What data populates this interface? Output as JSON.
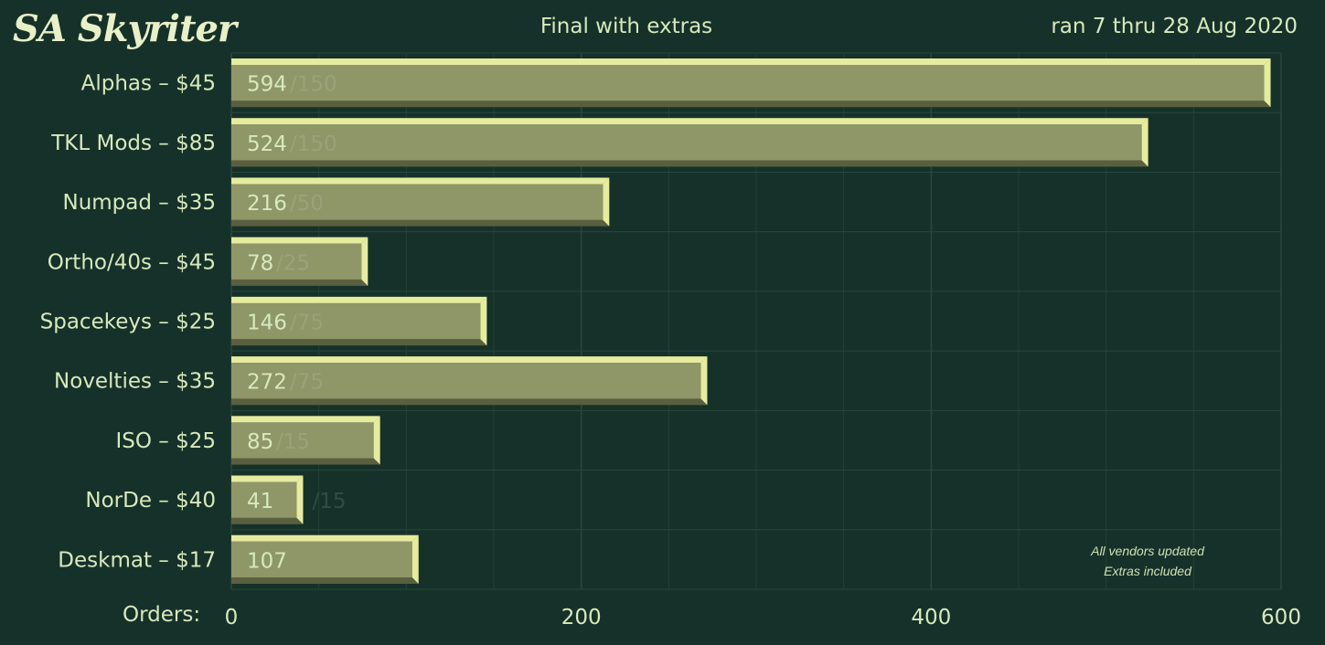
{
  "header": {
    "logo": "SA Skyriter",
    "subtitle": "Final with extras",
    "date_range": "ran 7 thru 28 Aug 2020"
  },
  "note": {
    "line1": "All vendors updated",
    "line2": "Extras included"
  },
  "colors": {
    "background": "#163129",
    "grid": "#28473b",
    "bar_face": "#8f9668",
    "bar_highlight": "#e6ec9e",
    "bar_shadow": "#5a5f3f",
    "text": "#d7e9bd",
    "target_text": "#9aa27a",
    "target_text_outside": "#2f4e42"
  },
  "chart_data": {
    "type": "bar",
    "orientation": "horizontal",
    "xlabel": "Orders:",
    "xlim": [
      0,
      600
    ],
    "xticks": [
      0,
      200,
      400,
      600
    ],
    "grid": true,
    "categories": [
      "Alphas – $45",
      "TKL Mods – $85",
      "Numpad – $35",
      "Ortho/40s – $45",
      "Spacekeys – $25",
      "Novelties – $35",
      "ISO – $25",
      "NorDe – $40",
      "Deskmat – $17"
    ],
    "series": [
      {
        "values": [
          594,
          524,
          216,
          78,
          146,
          272,
          85,
          41,
          107
        ]
      }
    ],
    "targets": [
      "/150",
      "/150",
      "/50",
      "/25",
      "/75",
      "/75",
      "/15",
      "/15",
      ""
    ]
  }
}
